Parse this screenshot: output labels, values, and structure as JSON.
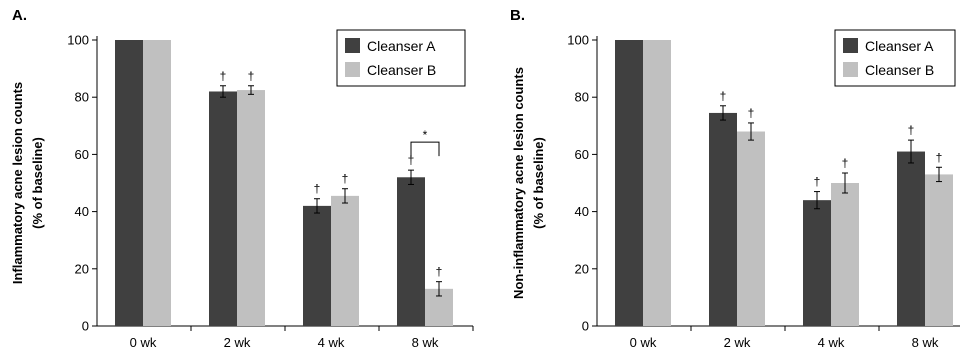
{
  "colors": {
    "cleanser_a": "#404040",
    "cleanser_b": "#c0c0c0"
  },
  "chart_data": [
    {
      "type": "bar",
      "panel_label": "A.",
      "ylabel_lines": [
        "Inflammatory acne lesion counts",
        "(% of baseline)"
      ],
      "categories": [
        "0 wk",
        "2 wk",
        "4 wk",
        "8 wk"
      ],
      "ylim": [
        0,
        100
      ],
      "yticks": [
        0,
        20,
        40,
        60,
        80,
        100
      ],
      "legend_position": "top-right",
      "series": [
        {
          "name": "Cleanser A",
          "values": [
            100,
            82,
            42,
            52
          ],
          "errors": [
            0,
            2,
            2.5,
            2.5
          ],
          "marks": [
            "",
            "†",
            "†",
            "†"
          ]
        },
        {
          "name": "Cleanser B",
          "values": [
            100,
            82.5,
            45.5,
            13
          ],
          "errors": [
            0,
            1.5,
            2.5,
            2.5
          ],
          "marks": [
            "",
            "†",
            "†",
            "†"
          ]
        }
      ],
      "significance": [
        {
          "category_index": 3,
          "label": "*"
        }
      ]
    },
    {
      "type": "bar",
      "panel_label": "B.",
      "ylabel_lines": [
        "Non-inflammatory acne lesion counts",
        "(% of baseline)"
      ],
      "categories": [
        "0 wk",
        "2 wk",
        "4 wk",
        "8 wk"
      ],
      "ylim": [
        0,
        100
      ],
      "yticks": [
        0,
        20,
        40,
        60,
        80,
        100
      ],
      "legend_position": "top-right",
      "series": [
        {
          "name": "Cleanser A",
          "values": [
            100,
            74.5,
            44,
            61
          ],
          "errors": [
            0,
            2.5,
            3,
            4
          ],
          "marks": [
            "",
            "†",
            "†",
            "†"
          ]
        },
        {
          "name": "Cleanser B",
          "values": [
            100,
            68,
            50,
            53
          ],
          "errors": [
            0,
            3,
            3.5,
            2.5
          ],
          "marks": [
            "",
            "†",
            "†",
            "†"
          ]
        }
      ],
      "significance": []
    }
  ]
}
